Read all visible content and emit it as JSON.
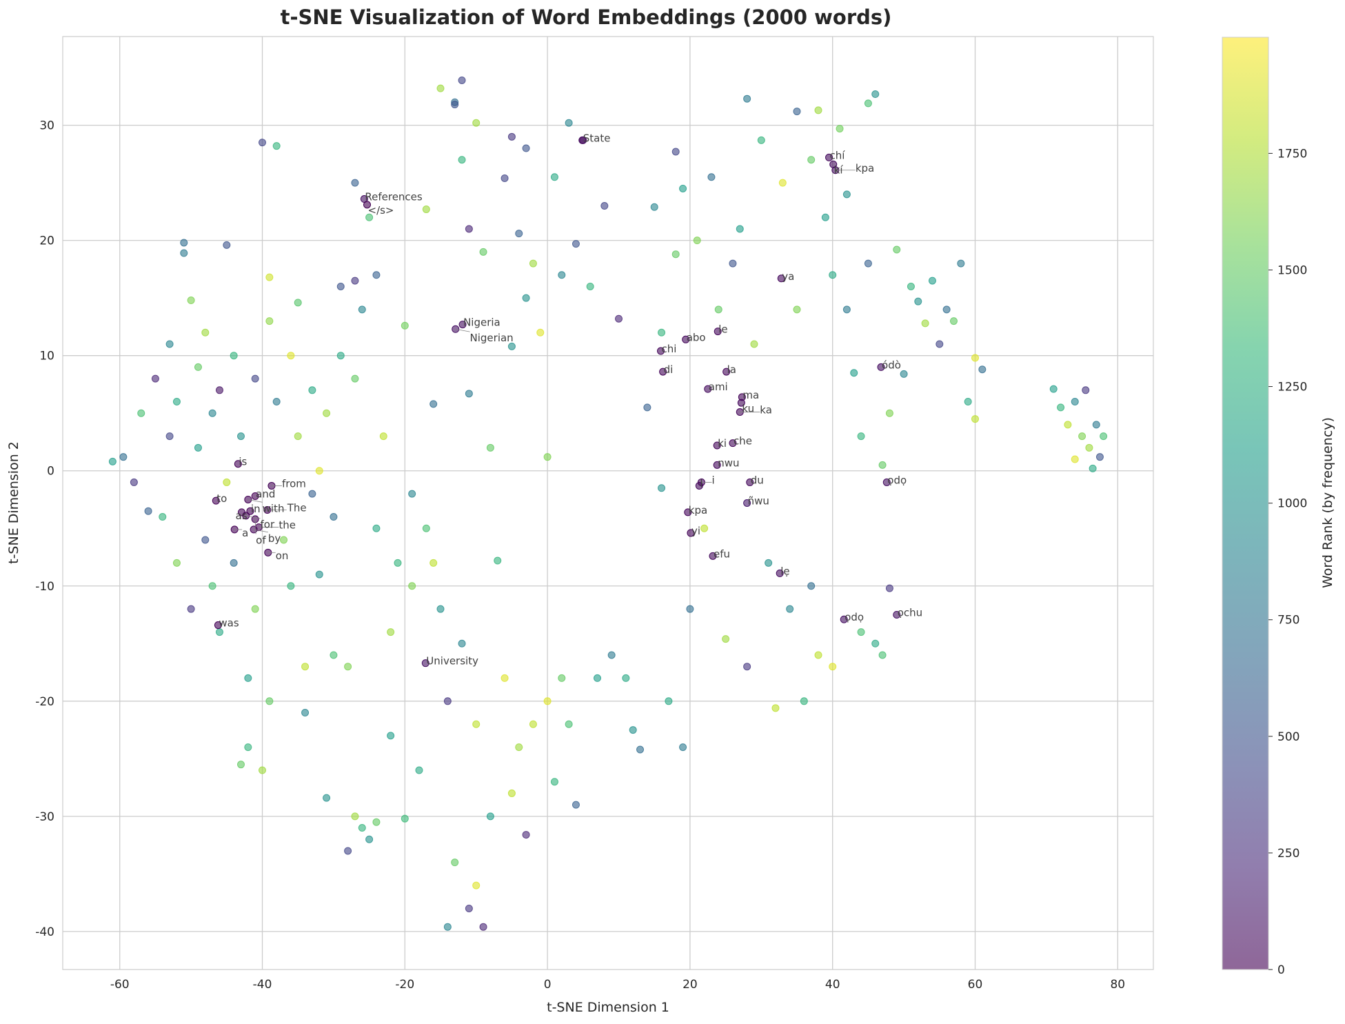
{
  "chart_data": {
    "type": "scatter",
    "title": "t-SNE Visualization of Word Embeddings (2000 words)",
    "xlabel": "t-SNE Dimension 1",
    "ylabel": "t-SNE Dimension 2",
    "xlim": [
      -68,
      85
    ],
    "ylim": [
      -43.3,
      37.7
    ],
    "xticks": [
      -60,
      -40,
      -20,
      0,
      20,
      40,
      60,
      80
    ],
    "yticks": [
      -40,
      -30,
      -20,
      -10,
      0,
      10,
      20,
      30
    ],
    "grid": true,
    "colormap": "viridis",
    "marker_alpha": 0.6,
    "colorbar": {
      "label": "Word Rank (by frequency)",
      "range": [
        0,
        1999
      ],
      "ticks": [
        0,
        250,
        500,
        750,
        1000,
        1250,
        1500,
        1750
      ]
    },
    "annotations": [
      {
        "text": "State",
        "x": 4.9,
        "y": 28.7,
        "rank": 60
      },
      {
        "text": "References",
        "x": -25.7,
        "y": 23.6,
        "rank": 80
      },
      {
        "text": "</s>",
        "x": -25.3,
        "y": 23.1,
        "rank": 1
      },
      {
        "text": "Nigeria",
        "x": -11.9,
        "y": 12.7,
        "rank": 70
      },
      {
        "text": "Nigerian",
        "x": -12.9,
        "y": 12.3,
        "rank": 90
      },
      {
        "text": "University",
        "x": -17.1,
        "y": -16.7,
        "rank": 100
      },
      {
        "text": "is",
        "x": -43.4,
        "y": 0.6,
        "rank": 12
      },
      {
        "text": "to",
        "x": -46.5,
        "y": -2.6,
        "rank": 5
      },
      {
        "text": "and",
        "x": -41.0,
        "y": -2.2,
        "rank": 3
      },
      {
        "text": "with",
        "x": -42.0,
        "y": -2.5,
        "rank": 15
      },
      {
        "text": "in",
        "x": -41.7,
        "y": -3.5,
        "rank": 4
      },
      {
        "text": "The",
        "x": -39.3,
        "y": -3.4,
        "rank": 8
      },
      {
        "text": "as",
        "x": -42.9,
        "y": -3.6,
        "rank": 14
      },
      {
        "text": "for",
        "x": -42.3,
        "y": -3.9,
        "rank": 11
      },
      {
        "text": "of",
        "x": -41.0,
        "y": -4.2,
        "rank": 2
      },
      {
        "text": "a",
        "x": -43.9,
        "y": -5.1,
        "rank": 6
      },
      {
        "text": "by",
        "x": -41.2,
        "y": -5.1,
        "rank": 17
      },
      {
        "text": "the",
        "x": -40.5,
        "y": -4.9,
        "rank": 0
      },
      {
        "text": "on",
        "x": -39.2,
        "y": -7.1,
        "rank": 16
      },
      {
        "text": "from",
        "x": -38.7,
        "y": -1.3,
        "rank": 20
      },
      {
        "text": "was",
        "x": -46.2,
        "y": -13.4,
        "rank": 13
      },
      {
        "text": "chi",
        "x": 15.9,
        "y": 10.4,
        "rank": 40
      },
      {
        "text": "abo",
        "x": 19.4,
        "y": 11.4,
        "rank": 45
      },
      {
        "text": "le",
        "x": 23.9,
        "y": 12.1,
        "rank": 35
      },
      {
        "text": "di",
        "x": 16.2,
        "y": 8.6,
        "rank": 25
      },
      {
        "text": "la",
        "x": 25.1,
        "y": 8.6,
        "rank": 30
      },
      {
        "text": "ami",
        "x": 22.5,
        "y": 7.1,
        "rank": 55
      },
      {
        "text": "ma",
        "x": 27.3,
        "y": 6.4,
        "rank": 22
      },
      {
        "text": "ku",
        "x": 27.2,
        "y": 5.9,
        "rank": 42
      },
      {
        "text": "ka",
        "x": 27.0,
        "y": 5.1,
        "rank": 28
      },
      {
        "text": "ki",
        "x": 23.8,
        "y": 2.2,
        "rank": 33
      },
      {
        "text": "che",
        "x": 26.0,
        "y": 2.4,
        "rank": 38
      },
      {
        "text": "nwu",
        "x": 23.8,
        "y": 0.5,
        "rank": 48
      },
      {
        "text": "l",
        "x": 21.3,
        "y": -1.3,
        "rank": 50
      },
      {
        "text": "i",
        "x": 21.6,
        "y": -1.0,
        "rank": 26
      },
      {
        "text": "du",
        "x": 28.4,
        "y": -1.0,
        "rank": 44
      },
      {
        "text": "ñwu",
        "x": 28.0,
        "y": -2.8,
        "rank": 150
      },
      {
        "text": "kpa",
        "x": 19.7,
        "y": -3.6,
        "rank": 36
      },
      {
        "text": "yi",
        "x": 20.1,
        "y": -5.4,
        "rank": 24
      },
      {
        "text": "efu",
        "x": 23.2,
        "y": -7.4,
        "rank": 52
      },
      {
        "text": "ya",
        "x": 32.8,
        "y": 16.7,
        "rank": 41
      },
      {
        "text": "chí",
        "x": 39.5,
        "y": 27.2,
        "rank": 58
      },
      {
        "text": "kí",
        "x": 40.1,
        "y": 26.6,
        "rank": 62
      },
      {
        "text": "kpa",
        "x": 40.4,
        "y": 26.1,
        "rank": 66
      },
      {
        "text": "ódò",
        "x": 46.8,
        "y": 9.0,
        "rank": 75
      },
      {
        "text": "ọdọ",
        "x": 47.6,
        "y": -1.0,
        "rank": 85
      },
      {
        "text": "lẹ",
        "x": 32.6,
        "y": -8.9,
        "rank": 65
      },
      {
        "text": "ọdọ",
        "x": 41.6,
        "y": -12.9,
        "rank": 78
      },
      {
        "text": "ọchu",
        "x": 49.0,
        "y": -12.5,
        "rank": 95
      }
    ],
    "points": [
      [
        -61,
        0.8,
        1100
      ],
      [
        -59.5,
        1.2,
        700
      ],
      [
        -58,
        -1,
        300
      ],
      [
        -57,
        5,
        1400
      ],
      [
        -56,
        -3.5,
        600
      ],
      [
        -55,
        8,
        200
      ],
      [
        -54,
        -4,
        1300
      ],
      [
        -53,
        11,
        900
      ],
      [
        -53,
        3,
        400
      ],
      [
        -52,
        -8,
        1600
      ],
      [
        -52,
        6,
        1200
      ],
      [
        -51,
        19.8,
        700
      ],
      [
        -51,
        18.9,
        800
      ],
      [
        -50,
        14.8,
        1600
      ],
      [
        -50,
        -12,
        300
      ],
      [
        -49,
        2,
        1100
      ],
      [
        -49,
        9,
        1500
      ],
      [
        -48,
        -6,
        500
      ],
      [
        -48,
        12,
        1700
      ],
      [
        -47,
        -10,
        1400
      ],
      [
        -47,
        5,
        900
      ],
      [
        -46,
        -14,
        1200
      ],
      [
        -46,
        7,
        100
      ],
      [
        -45,
        19.6,
        500
      ],
      [
        -45,
        -1,
        1800
      ],
      [
        -44,
        10,
        1300
      ],
      [
        -44,
        -8,
        700
      ],
      [
        -43,
        3,
        1000
      ],
      [
        -43,
        -25.5,
        1500
      ],
      [
        -42,
        -24,
        1300
      ],
      [
        -42,
        -18,
        1100
      ],
      [
        -41,
        8,
        400
      ],
      [
        -41,
        -12,
        1600
      ],
      [
        -40,
        28.5,
        400
      ],
      [
        -40,
        -26,
        1700
      ],
      [
        -39,
        16.8,
        1850
      ],
      [
        -39,
        13,
        1650
      ],
      [
        -39,
        -20,
        1500
      ],
      [
        -38,
        28.2,
        1300
      ],
      [
        -38,
        6,
        800
      ],
      [
        -37,
        -6,
        1600
      ],
      [
        -36,
        10,
        1900
      ],
      [
        -36,
        -10,
        1300
      ],
      [
        -35,
        3,
        1700
      ],
      [
        -35,
        14.6,
        1450
      ],
      [
        -34,
        -17,
        1800
      ],
      [
        -34,
        -21,
        900
      ],
      [
        -33,
        7,
        1200
      ],
      [
        -33,
        -2,
        600
      ],
      [
        -32,
        0,
        1900
      ],
      [
        -32,
        -9,
        1000
      ],
      [
        -31,
        5,
        1700
      ],
      [
        -31,
        -28.4,
        1000
      ],
      [
        -30,
        -16,
        1400
      ],
      [
        -30,
        -4,
        700
      ],
      [
        -29,
        16,
        500
      ],
      [
        -29,
        10,
        1200
      ],
      [
        -28,
        -33,
        400
      ],
      [
        -28,
        -17,
        1600
      ],
      [
        -27,
        16.5,
        300
      ],
      [
        -27,
        25,
        600
      ],
      [
        -27,
        8,
        1500
      ],
      [
        -27,
        -30,
        1700
      ],
      [
        -26,
        -31,
        1300
      ],
      [
        -26,
        14,
        900
      ],
      [
        -25,
        -32,
        1000
      ],
      [
        -25,
        22,
        1400
      ],
      [
        -24,
        -5,
        1200
      ],
      [
        -24,
        17,
        600
      ],
      [
        -24,
        -30.5,
        1500
      ],
      [
        -23,
        3,
        1800
      ],
      [
        -22,
        -23,
        1100
      ],
      [
        -22,
        -14,
        1700
      ],
      [
        -21,
        -8,
        1300
      ],
      [
        -20,
        12.6,
        1550
      ],
      [
        -20,
        -30.2,
        1350
      ],
      [
        -19,
        -2,
        900
      ],
      [
        -19,
        -10,
        1600
      ],
      [
        -18,
        -26,
        1200
      ],
      [
        -17,
        22.7,
        1700
      ],
      [
        -17,
        -5,
        1400
      ],
      [
        -16,
        -8,
        1800
      ],
      [
        -16,
        5.8,
        700
      ],
      [
        -15,
        33.2,
        1700
      ],
      [
        -15,
        -12,
        1000
      ],
      [
        -14,
        -39.6,
        900
      ],
      [
        -14,
        -20,
        300
      ],
      [
        -13,
        32,
        700
      ],
      [
        -13,
        31.8,
        500
      ],
      [
        -13,
        -34,
        1500
      ],
      [
        -12,
        33.9,
        400
      ],
      [
        -12,
        27,
        1300
      ],
      [
        -12,
        -15,
        900
      ],
      [
        -11,
        21,
        200
      ],
      [
        -11,
        6.7,
        800
      ],
      [
        -11,
        -38,
        300
      ],
      [
        -10,
        30.2,
        1700
      ],
      [
        -10,
        -22,
        1800
      ],
      [
        -10,
        -36,
        1900
      ],
      [
        -9,
        19,
        1500
      ],
      [
        -9,
        -39.6,
        200
      ],
      [
        -8,
        2,
        1500
      ],
      [
        -8,
        -30,
        1100
      ],
      [
        -7,
        -7.8,
        1300
      ],
      [
        -6,
        25.4,
        400
      ],
      [
        -6,
        -18,
        1900
      ],
      [
        -5,
        29,
        300
      ],
      [
        -5,
        10.8,
        1000
      ],
      [
        -5,
        -28,
        1800
      ],
      [
        -4,
        20.6,
        600
      ],
      [
        -4,
        -24,
        1700
      ],
      [
        -3,
        28,
        500
      ],
      [
        -3,
        15,
        1000
      ],
      [
        -3,
        -31.6,
        200
      ],
      [
        -2,
        18,
        1700
      ],
      [
        -2,
        -22,
        1800
      ],
      [
        -1,
        12,
        1900
      ],
      [
        0,
        1.2,
        1600
      ],
      [
        0,
        -20,
        1900
      ],
      [
        1,
        25.5,
        1200
      ],
      [
        1,
        -27,
        1300
      ],
      [
        2,
        17,
        900
      ],
      [
        2,
        -18,
        1500
      ],
      [
        3,
        30.2,
        900
      ],
      [
        3,
        -22,
        1400
      ],
      [
        4,
        19.7,
        500
      ],
      [
        4,
        -29,
        600
      ],
      [
        5,
        28.7,
        60
      ],
      [
        6,
        16,
        1300
      ],
      [
        7,
        -18,
        1100
      ],
      [
        8,
        23,
        400
      ],
      [
        9,
        -16,
        800
      ],
      [
        10,
        13.2,
        200
      ],
      [
        11,
        -18,
        1200
      ],
      [
        12,
        -22.5,
        1000
      ],
      [
        13,
        -24.2,
        700
      ],
      [
        14,
        5.5,
        600
      ],
      [
        15,
        22.9,
        900
      ],
      [
        16,
        -1.5,
        1000
      ],
      [
        16,
        12,
        1300
      ],
      [
        17,
        -20,
        1200
      ],
      [
        18,
        27.7,
        400
      ],
      [
        18,
        18.8,
        1500
      ],
      [
        19,
        24.5,
        1100
      ],
      [
        19,
        -24,
        800
      ],
      [
        20,
        -12,
        700
      ],
      [
        21,
        20,
        1600
      ],
      [
        22,
        -5,
        1800
      ],
      [
        23,
        25.5,
        700
      ],
      [
        24,
        14,
        1500
      ],
      [
        25,
        -14.6,
        1700
      ],
      [
        26,
        18,
        500
      ],
      [
        27,
        21,
        1100
      ],
      [
        28,
        32.3,
        800
      ],
      [
        28,
        -17,
        300
      ],
      [
        29,
        11,
        1700
      ],
      [
        30,
        28.7,
        1300
      ],
      [
        31,
        -8,
        1000
      ],
      [
        32,
        -20.6,
        1800
      ],
      [
        33,
        25,
        1900
      ],
      [
        34,
        -12,
        900
      ],
      [
        35,
        31.2,
        600
      ],
      [
        35,
        14,
        1600
      ],
      [
        36,
        -20,
        1300
      ],
      [
        37,
        27,
        1500
      ],
      [
        37,
        -10,
        700
      ],
      [
        38,
        31.3,
        1700
      ],
      [
        38,
        -16,
        1800
      ],
      [
        39,
        22,
        1100
      ],
      [
        40,
        17,
        1200
      ],
      [
        40,
        -17,
        1900
      ],
      [
        41,
        29.7,
        1550
      ],
      [
        42,
        24,
        1000
      ],
      [
        42,
        14,
        800
      ],
      [
        43,
        8.5,
        1100
      ],
      [
        44,
        -14,
        1400
      ],
      [
        44,
        3,
        1300
      ],
      [
        45,
        31.9,
        1400
      ],
      [
        45,
        18,
        600
      ],
      [
        46,
        32.7,
        1000
      ],
      [
        46,
        -15,
        1200
      ],
      [
        47,
        0.5,
        1500
      ],
      [
        47,
        -16,
        1400
      ],
      [
        48,
        5,
        1600
      ],
      [
        48,
        -10.2,
        300
      ],
      [
        49,
        19.2,
        1500
      ],
      [
        50,
        8.4,
        900
      ],
      [
        51,
        16,
        1300
      ],
      [
        52,
        14.7,
        1000
      ],
      [
        53,
        12.8,
        1700
      ],
      [
        54,
        16.5,
        1100
      ],
      [
        55,
        11,
        400
      ],
      [
        56,
        14,
        700
      ],
      [
        57,
        13,
        1500
      ],
      [
        58,
        18,
        800
      ],
      [
        59,
        6,
        1200
      ],
      [
        60,
        4.5,
        1800
      ],
      [
        60,
        9.8,
        1900
      ],
      [
        61,
        8.8,
        700
      ],
      [
        71,
        7.1,
        1100
      ],
      [
        72,
        5.5,
        1300
      ],
      [
        73,
        4,
        1800
      ],
      [
        74,
        6,
        900
      ],
      [
        74,
        1,
        1900
      ],
      [
        75,
        3,
        1600
      ],
      [
        75.5,
        7,
        300
      ],
      [
        76,
        2,
        1700
      ],
      [
        76.5,
        0.2,
        1200
      ],
      [
        77,
        4,
        800
      ],
      [
        77.5,
        1.2,
        500
      ],
      [
        78,
        3,
        1400
      ]
    ]
  }
}
